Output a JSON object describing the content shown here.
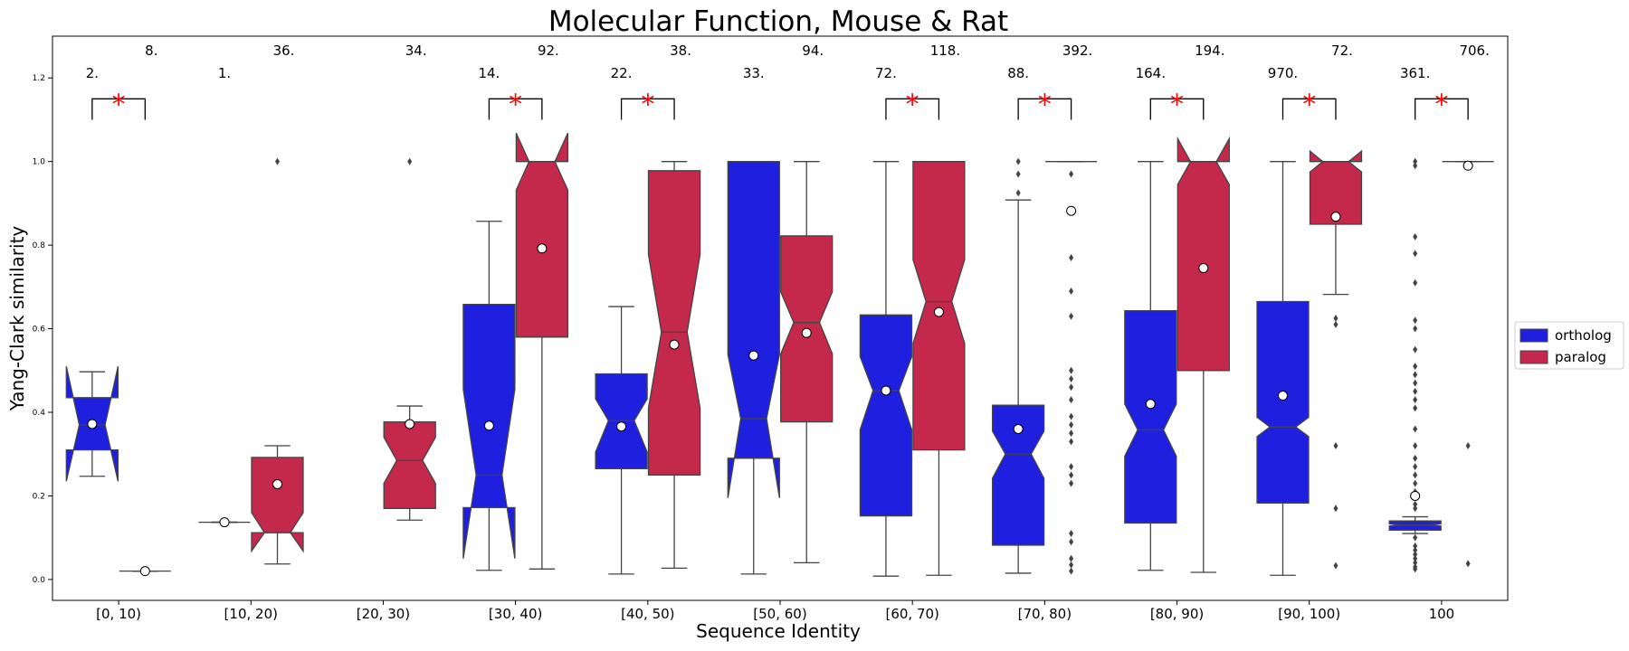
{
  "chart_data": {
    "type": "box",
    "title": "Molecular Function, Mouse & Rat",
    "xlabel": "Sequence Identity",
    "ylabel": "Yang-Clark similarity",
    "ylim": [
      -0.05,
      1.3
    ],
    "yticks": [
      "0.0",
      "0.2",
      "0.4",
      "0.6",
      "0.8",
      "1.0",
      "1.2"
    ],
    "grid": false,
    "legend_position": "right",
    "colors": {
      "ortholog": "#1f1fe0",
      "paralog": "#c4284a"
    },
    "categories": [
      "[0, 10)",
      "[10, 20)",
      "[20, 30)",
      "[30, 40)",
      "[40, 50)",
      "[50, 60)",
      "[60, 70)",
      "[70, 80)",
      "[80, 90)",
      "[90, 100)",
      "100"
    ],
    "series": [
      {
        "name": "ortholog",
        "boxes": [
          {
            "q1": 0.31,
            "median": 0.37,
            "q3": 0.435,
            "whislo": 0.247,
            "whishi": 0.497,
            "notchlo": 0.235,
            "notchhi": 0.51,
            "mean": 0.372,
            "fliers": []
          },
          {
            "q1": 0.137,
            "median": 0.137,
            "q3": 0.137,
            "whislo": 0.137,
            "whishi": 0.137,
            "notchlo": 0.137,
            "notchhi": 0.137,
            "mean": 0.137,
            "fliers": []
          },
          null,
          {
            "q1": 0.172,
            "median": 0.25,
            "q3": 0.658,
            "whislo": 0.022,
            "whishi": 0.857,
            "notchlo": 0.05,
            "notchhi": 0.455,
            "mean": 0.368,
            "fliers": []
          },
          {
            "q1": 0.265,
            "median": 0.38,
            "q3": 0.492,
            "whislo": 0.013,
            "whishi": 0.653,
            "notchlo": 0.305,
            "notchhi": 0.432,
            "mean": 0.366,
            "fliers": []
          },
          {
            "q1": 0.29,
            "median": 0.385,
            "q3": 1.0,
            "whislo": 0.013,
            "whishi": 1.0,
            "notchlo": 0.195,
            "notchhi": 0.538,
            "mean": 0.536,
            "fliers": []
          },
          {
            "q1": 0.152,
            "median": 0.452,
            "q3": 0.633,
            "whislo": 0.008,
            "whishi": 1.0,
            "notchlo": 0.358,
            "notchhi": 0.533,
            "mean": 0.452,
            "fliers": []
          },
          {
            "q1": 0.082,
            "median": 0.3,
            "q3": 0.417,
            "whislo": 0.015,
            "whishi": 0.908,
            "notchlo": 0.242,
            "notchhi": 0.355,
            "mean": 0.36,
            "fliers": [
              0.925,
              0.97,
              1.0
            ]
          },
          {
            "q1": 0.135,
            "median": 0.358,
            "q3": 0.643,
            "whislo": 0.022,
            "whishi": 1.0,
            "notchlo": 0.295,
            "notchhi": 0.42,
            "mean": 0.42,
            "fliers": []
          },
          {
            "q1": 0.183,
            "median": 0.365,
            "q3": 0.665,
            "whislo": 0.01,
            "whishi": 1.0,
            "notchlo": 0.342,
            "notchhi": 0.388,
            "mean": 0.44,
            "fliers": []
          },
          {
            "q1": 0.118,
            "median": 0.13,
            "q3": 0.14,
            "whislo": 0.11,
            "whishi": 0.15,
            "notchlo": 0.128,
            "notchhi": 0.133,
            "mean": 0.2,
            "fliers": [
              0.025,
              0.03,
              0.04,
              0.05,
              0.06,
              0.07,
              0.08,
              0.1,
              0.17,
              0.18,
              0.21,
              0.23,
              0.25,
              0.27,
              0.29,
              0.32,
              0.36,
              0.41,
              0.43,
              0.45,
              0.47,
              0.49,
              0.51,
              0.55,
              0.6,
              0.62,
              0.71,
              0.78,
              0.82,
              1.0,
              0.99
            ]
          }
        ]
      },
      {
        "name": "paralog",
        "boxes": [
          {
            "q1": 0.02,
            "median": 0.02,
            "q3": 0.02,
            "whislo": 0.02,
            "whishi": 0.02,
            "notchlo": 0.02,
            "notchhi": 0.02,
            "mean": 0.02,
            "fliers": []
          },
          {
            "q1": 0.112,
            "median": 0.112,
            "q3": 0.292,
            "whislo": 0.037,
            "whishi": 0.32,
            "notchlo": 0.068,
            "notchhi": 0.16,
            "mean": 0.228,
            "fliers": [
              1.0
            ]
          },
          {
            "q1": 0.17,
            "median": 0.285,
            "q3": 0.377,
            "whislo": 0.142,
            "whishi": 0.415,
            "notchlo": 0.23,
            "notchhi": 0.34,
            "mean": 0.372,
            "fliers": [
              1.0
            ]
          },
          {
            "q1": 0.58,
            "median": 1.0,
            "q3": 1.0,
            "whislo": 0.025,
            "whishi": 1.0,
            "notchlo": 0.932,
            "notchhi": 1.068,
            "mean": 0.792,
            "fliers": []
          },
          {
            "q1": 0.25,
            "median": 0.592,
            "q3": 0.978,
            "whislo": 0.027,
            "whishi": 1.0,
            "notchlo": 0.41,
            "notchhi": 0.778,
            "mean": 0.562,
            "fliers": []
          },
          {
            "q1": 0.377,
            "median": 0.615,
            "q3": 0.822,
            "whislo": 0.04,
            "whishi": 1.0,
            "notchlo": 0.54,
            "notchhi": 0.688,
            "mean": 0.59,
            "fliers": []
          },
          {
            "q1": 0.31,
            "median": 0.665,
            "q3": 1.0,
            "whislo": 0.01,
            "whishi": 1.0,
            "notchlo": 0.565,
            "notchhi": 0.765,
            "mean": 0.64,
            "fliers": []
          },
          {
            "q1": 1.0,
            "median": 1.0,
            "q3": 1.0,
            "whislo": 1.0,
            "whishi": 1.0,
            "notchlo": 1.0,
            "notchhi": 1.0,
            "mean": 0.882,
            "fliers": [
              0.02,
              0.035,
              0.05,
              0.09,
              0.11,
              0.23,
              0.25,
              0.27,
              0.33,
              0.35,
              0.37,
              0.39,
              0.43,
              0.46,
              0.48,
              0.5,
              0.63,
              0.69,
              0.77,
              0.97
            ]
          },
          {
            "q1": 0.5,
            "median": 1.0,
            "q3": 1.0,
            "whislo": 0.017,
            "whishi": 1.0,
            "notchlo": 0.945,
            "notchhi": 1.055,
            "mean": 0.745,
            "fliers": []
          },
          {
            "q1": 0.85,
            "median": 1.0,
            "q3": 1.0,
            "whislo": 0.682,
            "whishi": 1.0,
            "notchlo": 0.975,
            "notchhi": 1.025,
            "mean": 0.868,
            "fliers": [
              0.033,
              0.17,
              0.32,
              0.61,
              0.625
            ]
          },
          {
            "q1": 1.0,
            "median": 1.0,
            "q3": 1.0,
            "whislo": 1.0,
            "whishi": 1.0,
            "notchlo": 1.0,
            "notchhi": 1.0,
            "mean": 0.99,
            "fliers": [
              0.038,
              0.32
            ]
          }
        ]
      }
    ],
    "counts": [
      {
        "ortholog": "2.",
        "paralog": "8."
      },
      {
        "ortholog": "1.",
        "paralog": "36."
      },
      {
        "ortholog": "",
        "paralog": "34."
      },
      {
        "ortholog": "14.",
        "paralog": "92."
      },
      {
        "ortholog": "22.",
        "paralog": "38."
      },
      {
        "ortholog": "33.",
        "paralog": "94."
      },
      {
        "ortholog": "72.",
        "paralog": "118."
      },
      {
        "ortholog": "88.",
        "paralog": "392."
      },
      {
        "ortholog": "164.",
        "paralog": "194."
      },
      {
        "ortholog": "970.",
        "paralog": "72."
      },
      {
        "ortholog": "361.",
        "paralog": "706."
      }
    ],
    "significance_marker": "*",
    "significant": [
      true,
      false,
      false,
      true,
      true,
      false,
      true,
      true,
      true,
      true,
      true
    ]
  }
}
